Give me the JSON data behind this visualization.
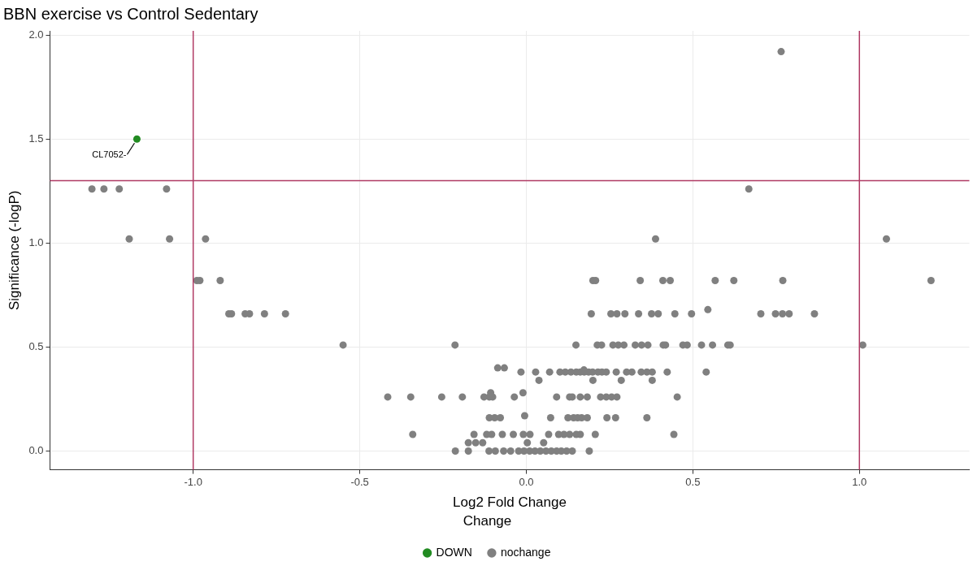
{
  "chart_data": {
    "type": "scatter",
    "title": "BBN exercise vs Control Sedentary",
    "xlabel": "Log2 Fold Change",
    "ylabel": "Significance (-logP)",
    "legend_title": "Change",
    "legend": "bottom",
    "grid": true,
    "marker": "circle",
    "xlim": [
      -1.43,
      1.33
    ],
    "ylim": [
      -0.09,
      2.02
    ],
    "xticks": [
      {
        "value": -1,
        "label": "-1.0"
      },
      {
        "value": -0.5,
        "label": "-0.5"
      },
      {
        "value": 0,
        "label": "0.0"
      },
      {
        "value": 0.5,
        "label": "0.5"
      },
      {
        "value": 1,
        "label": "1.0"
      }
    ],
    "yticks": [
      {
        "value": 0,
        "label": "0.0"
      },
      {
        "value": 0.5,
        "label": "0.5"
      },
      {
        "value": 1,
        "label": "1.0"
      },
      {
        "value": 1.5,
        "label": "1.5"
      },
      {
        "value": 2,
        "label": "2.0"
      }
    ],
    "ref_lines": [
      {
        "axis": "x",
        "value": -1,
        "color": "#b03a64"
      },
      {
        "axis": "x",
        "value": 1,
        "color": "#b03a64"
      },
      {
        "axis": "y",
        "value": 1.3,
        "color": "#b03a64"
      }
    ],
    "annotations": [
      {
        "text": "CL7052-",
        "x": -1.169,
        "y": 1.5
      }
    ],
    "series": [
      {
        "name": "DOWN",
        "color": "#228b22",
        "x": [
          -1.169
        ],
        "values": [
          1.5
        ]
      },
      {
        "name": "nochange",
        "color": "#808080",
        "x": [
          0.765,
          -1.304,
          -1.268,
          -1.222,
          -1.08,
          0.668,
          -1.192,
          -1.071,
          -0.963,
          0.388,
          1.081,
          -0.989,
          -0.98,
          -0.919,
          0.2,
          0.208,
          0.342,
          0.41,
          0.432,
          0.567,
          0.623,
          0.77,
          1.215,
          0.545,
          -0.893,
          -0.885,
          -0.844,
          -0.831,
          -0.786,
          -0.723,
          0.195,
          0.254,
          0.272,
          0.296,
          0.337,
          0.376,
          0.396,
          0.446,
          0.496,
          0.704,
          0.748,
          0.769,
          0.789,
          0.865,
          -0.55,
          -0.214,
          0.149,
          0.213,
          0.226,
          0.26,
          0.276,
          0.293,
          0.327,
          0.346,
          0.365,
          0.411,
          0.418,
          0.47,
          0.483,
          0.526,
          0.559,
          0.605,
          0.612,
          1.01,
          -0.086,
          -0.066,
          0.173,
          -0.016,
          0.028,
          0.07,
          0.101,
          0.117,
          0.134,
          0.15,
          0.162,
          0.174,
          0.187,
          0.199,
          0.215,
          0.227,
          0.24,
          0.27,
          0.301,
          0.317,
          0.345,
          0.362,
          0.378,
          0.423,
          0.54,
          0.038,
          0.2,
          0.285,
          0.378,
          -0.107,
          -0.01,
          -0.416,
          -0.347,
          -0.254,
          -0.192,
          -0.127,
          -0.111,
          -0.101,
          -0.036,
          0.091,
          0.13,
          0.138,
          0.162,
          0.183,
          0.223,
          0.24,
          0.256,
          0.272,
          0.453,
          -0.005,
          -0.111,
          -0.095,
          -0.078,
          0.073,
          0.125,
          0.142,
          0.154,
          0.166,
          0.183,
          0.242,
          0.268,
          0.362,
          -0.341,
          -0.157,
          -0.119,
          -0.104,
          -0.072,
          -0.039,
          -0.009,
          0.011,
          0.067,
          0.097,
          0.113,
          0.13,
          0.15,
          0.162,
          0.207,
          0.443,
          -0.174,
          -0.152,
          -0.131,
          0.003,
          0.052,
          -0.213,
          -0.174,
          -0.112,
          -0.093,
          -0.068,
          -0.047,
          -0.023,
          -0.007,
          0.01,
          0.026,
          0.042,
          0.059,
          0.075,
          0.091,
          0.105,
          0.121,
          0.138,
          0.189
        ],
        "values": [
          1.92,
          1.26,
          1.26,
          1.26,
          1.26,
          1.26,
          1.02,
          1.02,
          1.02,
          1.02,
          1.02,
          0.82,
          0.82,
          0.82,
          0.82,
          0.82,
          0.82,
          0.82,
          0.82,
          0.82,
          0.82,
          0.82,
          0.82,
          0.68,
          0.66,
          0.66,
          0.66,
          0.66,
          0.66,
          0.66,
          0.66,
          0.66,
          0.66,
          0.66,
          0.66,
          0.66,
          0.66,
          0.66,
          0.66,
          0.66,
          0.66,
          0.66,
          0.66,
          0.66,
          0.51,
          0.51,
          0.51,
          0.51,
          0.51,
          0.51,
          0.51,
          0.51,
          0.51,
          0.51,
          0.51,
          0.51,
          0.51,
          0.51,
          0.51,
          0.51,
          0.51,
          0.51,
          0.51,
          0.51,
          0.4,
          0.4,
          0.39,
          0.38,
          0.38,
          0.38,
          0.38,
          0.38,
          0.38,
          0.38,
          0.38,
          0.38,
          0.38,
          0.38,
          0.38,
          0.38,
          0.38,
          0.38,
          0.38,
          0.38,
          0.38,
          0.38,
          0.38,
          0.38,
          0.38,
          0.34,
          0.34,
          0.34,
          0.34,
          0.28,
          0.28,
          0.26,
          0.26,
          0.26,
          0.26,
          0.26,
          0.26,
          0.26,
          0.26,
          0.26,
          0.26,
          0.26,
          0.26,
          0.26,
          0.26,
          0.26,
          0.26,
          0.26,
          0.26,
          0.17,
          0.16,
          0.16,
          0.16,
          0.16,
          0.16,
          0.16,
          0.16,
          0.16,
          0.16,
          0.16,
          0.16,
          0.16,
          0.08,
          0.08,
          0.08,
          0.08,
          0.08,
          0.08,
          0.08,
          0.08,
          0.08,
          0.08,
          0.08,
          0.08,
          0.08,
          0.08,
          0.08,
          0.08,
          0.04,
          0.04,
          0.04,
          0.04,
          0.04,
          0,
          0,
          0,
          0,
          0,
          0,
          0,
          0,
          0,
          0,
          0,
          0,
          0,
          0,
          0,
          0,
          0,
          0
        ]
      }
    ]
  }
}
